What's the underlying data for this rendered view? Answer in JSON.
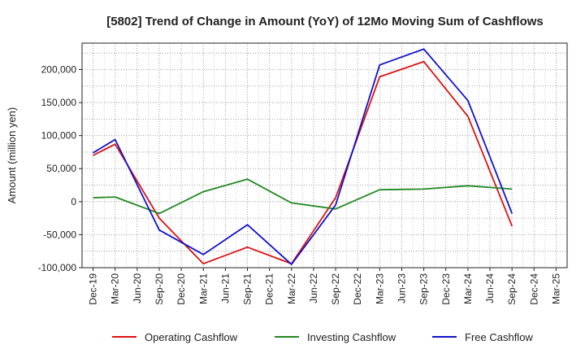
{
  "chart_data": {
    "type": "line",
    "title": "[5802]  Trend of Change in Amount (YoY) of 12Mo Moving Sum of Cashflows",
    "xlabel": "",
    "ylabel": "Amount (million yen)",
    "ylim": [
      -100000,
      240000
    ],
    "yticks": [
      -100000,
      -50000,
      0,
      50000,
      100000,
      150000,
      200000
    ],
    "ytick_labels": [
      "-100,000",
      "-50,000",
      "0",
      "50,000",
      "100,000",
      "150,000",
      "200,000"
    ],
    "categories": [
      "Dec-19",
      "Mar-20",
      "Jun-20",
      "Sep-20",
      "Dec-20",
      "Mar-21",
      "Jun-21",
      "Sep-21",
      "Dec-21",
      "Mar-22",
      "Jun-22",
      "Sep-22",
      "Dec-22",
      "Mar-23",
      "Jun-23",
      "Sep-23",
      "Dec-23",
      "Mar-24",
      "Jun-24",
      "Sep-24",
      "Dec-24",
      "Mar-25"
    ],
    "grid": true,
    "legend_position": "bottom",
    "series": [
      {
        "name": "Operating Cashflow",
        "color": "#dd1111",
        "values": [
          70000,
          87000,
          null,
          -25000,
          null,
          -94000,
          null,
          -69000,
          null,
          -94000,
          null,
          6000,
          null,
          189000,
          null,
          212000,
          null,
          129000,
          null,
          -37000,
          null,
          null
        ]
      },
      {
        "name": "Investing Cashflow",
        "color": "#228822",
        "values": [
          6000,
          7000,
          null,
          -18000,
          null,
          15000,
          null,
          34000,
          null,
          -2000,
          null,
          -11000,
          null,
          18000,
          null,
          19000,
          null,
          24000,
          null,
          19000,
          null,
          null
        ]
      },
      {
        "name": "Free Cashflow",
        "color": "#1111cc",
        "values": [
          74000,
          94000,
          null,
          -43000,
          null,
          -80000,
          null,
          -35000,
          null,
          -95000,
          null,
          -5000,
          null,
          207000,
          null,
          231000,
          null,
          153000,
          null,
          -18000,
          null,
          null
        ]
      }
    ]
  }
}
